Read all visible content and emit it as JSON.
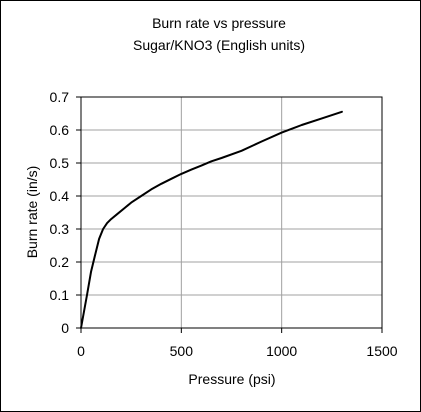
{
  "chart_data": {
    "type": "line",
    "title": "Burn rate vs pressure",
    "subtitle": "Sugar/KNO3 (English units)",
    "xlabel": "Pressure  (psi)",
    "ylabel": "Burn rate  (in/s)",
    "xlim": [
      0,
      1500
    ],
    "ylim": [
      0,
      0.7
    ],
    "x_ticks": [
      "0",
      "500",
      "1000",
      "1500"
    ],
    "y_ticks": [
      "0",
      "0.1",
      "0.2",
      "0.3",
      "0.4",
      "0.5",
      "0.6",
      "0.7"
    ],
    "grid": {
      "horizontal": true,
      "vertical": true
    },
    "legend": "none",
    "series": [
      {
        "color": "#000000",
        "x": [
          0,
          15,
          30,
          50,
          70,
          90,
          110,
          130,
          150,
          180,
          220,
          250,
          300,
          350,
          400,
          450,
          500,
          550,
          600,
          650,
          700,
          800,
          900,
          1000,
          1100,
          1200,
          1300
        ],
        "y": [
          0.0,
          0.05,
          0.1,
          0.17,
          0.22,
          0.27,
          0.3,
          0.318,
          0.33,
          0.345,
          0.365,
          0.38,
          0.4,
          0.42,
          0.437,
          0.452,
          0.467,
          0.48,
          0.492,
          0.505,
          0.515,
          0.537,
          0.565,
          0.592,
          0.615,
          0.635,
          0.655
        ]
      }
    ]
  }
}
